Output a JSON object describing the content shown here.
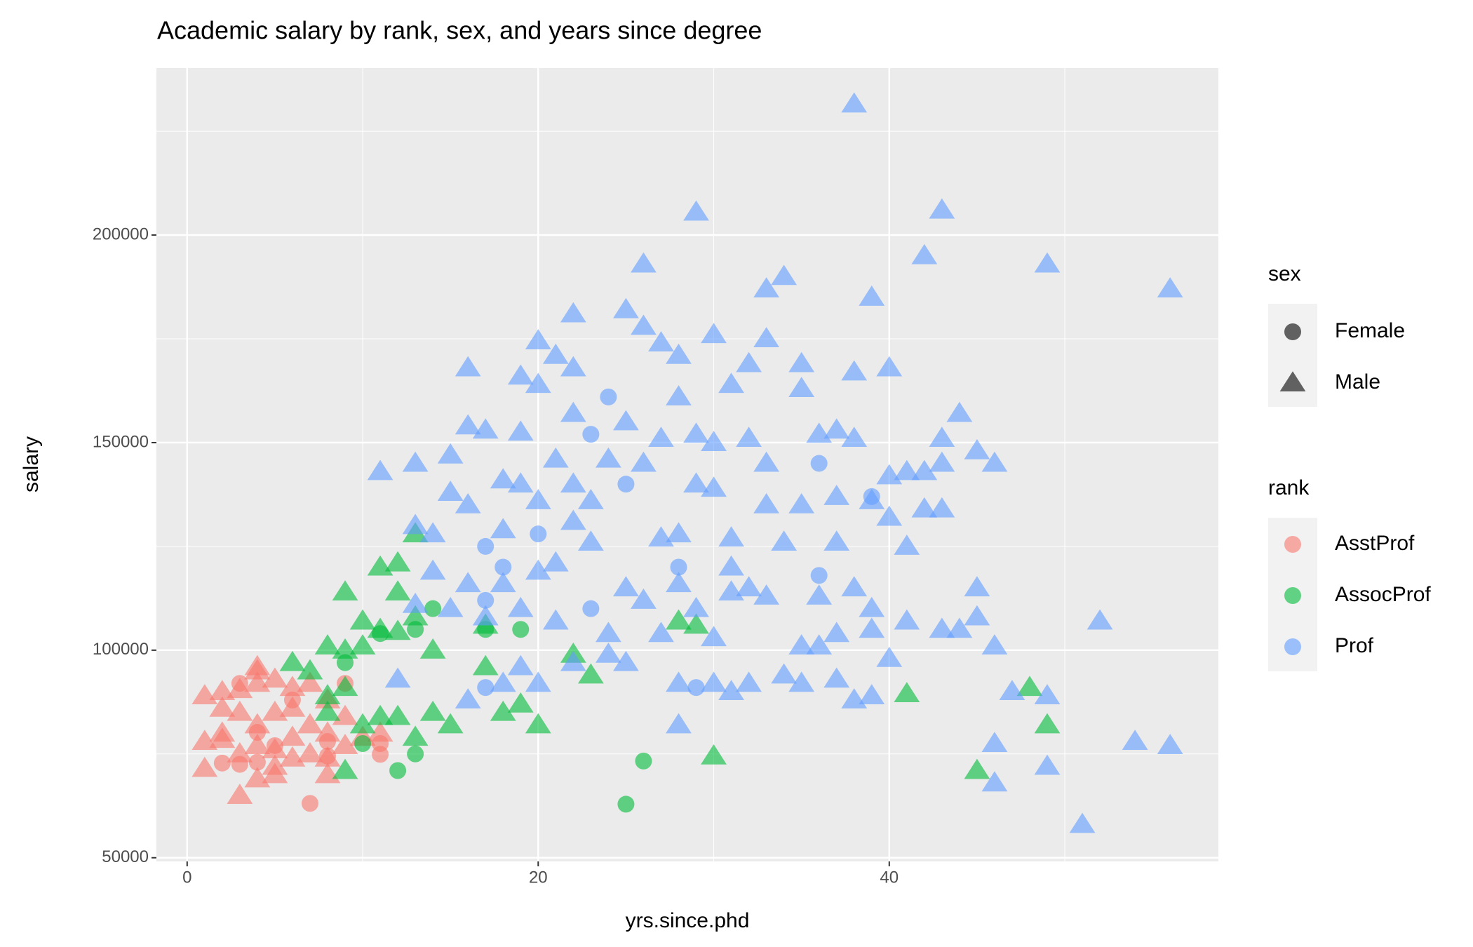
{
  "chart_data": {
    "type": "scatter",
    "title": "Academic salary by rank, sex, and years since degree",
    "x_label": "yrs.since.phd",
    "y_label": "salary",
    "xlim": [
      -1.75,
      58.75
    ],
    "ylim": [
      49113,
      240232
    ],
    "xticks": [
      0,
      20,
      40
    ],
    "yticks": [
      50000,
      100000,
      150000,
      200000,
      250000
    ],
    "xminor": [
      10,
      30,
      50
    ],
    "yminor": [
      75000,
      125000,
      175000,
      225000
    ],
    "grid": true,
    "background": "#ebebeb",
    "alpha": 0.6,
    "legend_position": "right",
    "legend_key_color": "#000000",
    "sex_legend": {
      "title": "sex",
      "items": [
        {
          "label": "Female",
          "shape": "circle"
        },
        {
          "label": "Male",
          "shape": "triangle"
        }
      ]
    },
    "rank_legend_title": "rank",
    "series": [
      {
        "name": "AsstProf",
        "color": "#F8766D",
        "groups": [
          {
            "x": [
              3,
              2,
              4,
              7,
              8,
              11,
              6,
              4,
              8,
              5,
              9,
              3,
              11
            ],
            "values": [
              92000,
              72800,
              73000,
              63100,
              78000,
              77500,
              88000,
              80200,
              74500,
              77000,
              92000,
              72500,
              74900
            ]
          },
          {
            "x": [
              1,
              1,
              1,
              2,
              2,
              2,
              3,
              3,
              3,
              3,
              4,
              4,
              4,
              4,
              4,
              5,
              5,
              5,
              5,
              5,
              6,
              6,
              6,
              6,
              7,
              7,
              7,
              8,
              8,
              8,
              8,
              9,
              9,
              10,
              11,
              4,
              2
            ],
            "values": [
              89000,
              78000,
              71500,
              90000,
              86000,
              78500,
              65000,
              75000,
              85000,
              90500,
              96000,
              92000,
              82000,
              77000,
              69000,
              93000,
              85000,
              76000,
              72000,
              70000,
              91000,
              86000,
              79000,
              74000,
              92000,
              82000,
              75000,
              88000,
              80000,
              74000,
              70000,
              84000,
              77000,
              79000,
              80000,
              95000,
              80000
            ]
          }
        ]
      },
      {
        "name": "AssocProf",
        "color": "#00BA38",
        "groups": [
          {
            "x": [
              10,
              12,
              13,
              14,
              19,
              26,
              25,
              11,
              9,
              13,
              17
            ],
            "values": [
              77500,
              71000,
              75000,
              110000,
              105000,
              73300,
              62900,
              104000,
              97000,
              105000,
              105000
            ]
          },
          {
            "x": [
              6,
              8,
              9,
              10,
              11,
              12,
              13,
              12,
              11,
              10,
              9,
              8,
              9,
              10,
              11,
              12,
              13,
              14,
              15,
              17,
              17,
              18,
              19,
              20,
              22,
              23,
              28,
              29,
              30,
              41,
              45,
              48,
              49,
              8,
              9,
              14,
              7,
              12,
              13
            ],
            "values": [
              97000,
              101000,
              114000,
              107000,
              120000,
              121000,
              128000,
              104500,
              105000,
              101000,
              100000,
              89000,
              71000,
              82000,
              84000,
              84000,
              79000,
              85000,
              82000,
              106000,
              96000,
              85000,
              87000,
              82000,
              99000,
              94000,
              107000,
              106000,
              74500,
              89500,
              71000,
              91000,
              82000,
              85000,
              91000,
              100000,
              95000,
              114000,
              108000
            ]
          }
        ]
      },
      {
        "name": "Prof",
        "color": "#619CFF",
        "groups": [
          {
            "x": [
              17,
              17,
              17,
              18,
              20,
              23,
              23,
              24,
              25,
              29,
              36,
              36,
              39,
              28
            ],
            "values": [
              125000,
              112000,
              91000,
              120000,
              128000,
              110000,
              152000,
              161000,
              140000,
              91000,
              145000,
              118000,
              137000,
              120000
            ]
          },
          {
            "x": [
              38,
              29,
              43,
              42,
              26,
              49,
              56,
              34,
              33,
              39,
              25,
              22,
              26,
              30,
              20,
              27,
              28,
              21,
              33,
              35,
              32,
              16,
              22,
              38,
              40,
              19,
              20,
              31,
              35,
              28,
              44,
              22,
              25,
              16,
              17,
              19,
              27,
              29,
              30,
              32,
              36,
              37,
              38,
              43,
              45,
              46,
              11,
              13,
              15,
              18,
              19,
              21,
              22,
              24,
              26,
              29,
              30,
              33,
              40,
              41,
              42,
              43,
              15,
              20,
              23,
              33,
              35,
              37,
              39,
              42,
              43,
              13,
              14,
              16,
              18,
              22,
              27,
              28,
              31,
              34,
              37,
              40,
              41,
              14,
              16,
              18,
              20,
              21,
              23,
              25,
              28,
              31,
              32,
              36,
              38,
              39,
              13,
              15,
              17,
              19,
              21,
              24,
              26,
              29,
              31,
              33,
              35,
              37,
              39,
              41,
              43,
              44,
              45,
              45,
              46,
              52,
              12,
              16,
              18,
              20,
              22,
              25,
              27,
              28,
              30,
              31,
              32,
              34,
              35,
              37,
              38,
              39,
              40,
              47,
              49,
              28,
              46,
              54,
              56,
              49,
              46,
              51,
              19,
              24,
              30,
              36
            ],
            "values": [
              231545,
              205500,
              206000,
              195000,
              193000,
              193000,
              187000,
              190000,
              187000,
              185000,
              182000,
              181000,
              178000,
              176000,
              174500,
              174000,
              171000,
              171000,
              175000,
              169000,
              169000,
              168000,
              168000,
              167000,
              168000,
              166000,
              164000,
              164000,
              163000,
              161000,
              157000,
              157000,
              155000,
              154000,
              153000,
              152500,
              151000,
              152000,
              150000,
              151000,
              152000,
              153000,
              151000,
              151000,
              148000,
              145000,
              143000,
              145000,
              147000,
              141000,
              140000,
              146000,
              140000,
              146000,
              145000,
              140000,
              139000,
              145000,
              142000,
              143000,
              143000,
              145000,
              138000,
              136000,
              136000,
              135000,
              135000,
              137000,
              136000,
              134000,
              134000,
              130000,
              128000,
              135000,
              129000,
              131000,
              127000,
              128000,
              127000,
              126000,
              126000,
              132000,
              125000,
              119000,
              116000,
              116000,
              119000,
              121000,
              126000,
              115000,
              116000,
              120000,
              115000,
              113000,
              115000,
              110000,
              111000,
              110000,
              108000,
              110000,
              107000,
              104000,
              112000,
              110000,
              114000,
              113000,
              101000,
              104000,
              105000,
              107000,
              105000,
              105000,
              115000,
              108000,
              101000,
              107000,
              93000,
              88000,
              92000,
              92000,
              97000,
              97000,
              104000,
              92000,
              92000,
              90000,
              92000,
              94000,
              92000,
              93000,
              88000,
              89000,
              98000,
              90000,
              89000,
              82000,
              77500,
              78000,
              77000,
              72000,
              68000,
              58000,
              96000,
              99000,
              103000,
              101000
            ]
          }
        ]
      }
    ]
  }
}
